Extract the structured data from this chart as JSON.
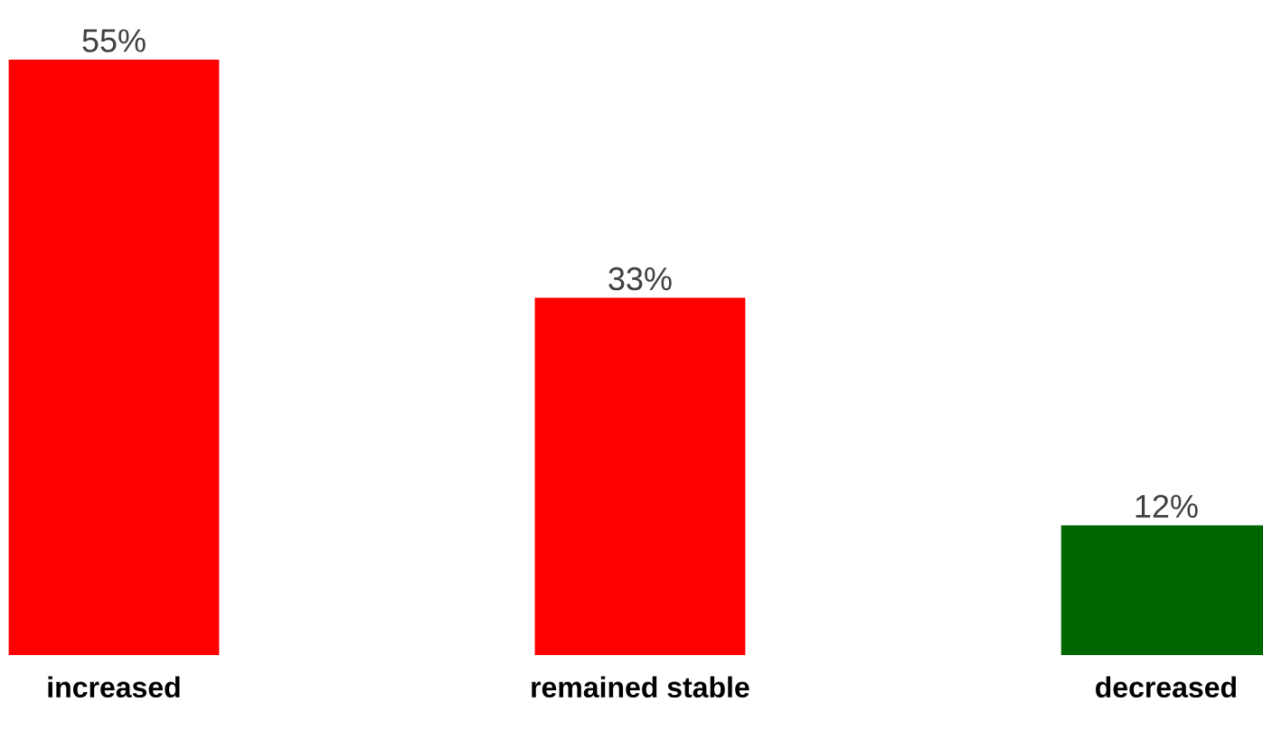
{
  "chart_data": {
    "type": "bar",
    "categories": [
      "increased",
      "remained stable",
      "decreased"
    ],
    "values": [
      55,
      33,
      12
    ],
    "colors": [
      "#ff0000",
      "#ff0000",
      "#006600"
    ],
    "value_labels": [
      "55%",
      "33%",
      "12%"
    ]
  }
}
